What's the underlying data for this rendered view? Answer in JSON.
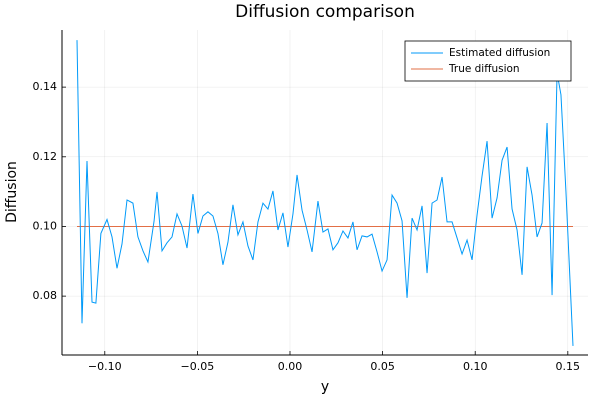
{
  "chart_data": {
    "type": "line",
    "title": "Diffusion comparison",
    "x_label": "y",
    "y_label": "Diffusion",
    "xlim": [
      -0.1231,
      0.1609
    ],
    "ylim": [
      0.0631,
      0.1564
    ],
    "xticks": [
      {
        "value": -0.1,
        "label": "−0.10"
      },
      {
        "value": -0.05,
        "label": "−0.05"
      },
      {
        "value": 0,
        "label": "0.00"
      },
      0.05,
      {
        "value": 0.1,
        "label": "0.10"
      },
      0.15
    ],
    "yticks": [
      0.08,
      {
        "value": 0.1,
        "label": "0.10"
      },
      0.12,
      0.14
    ],
    "grid": true,
    "legend": "top-right",
    "series": [
      {
        "name": "Estimated diffusion",
        "color": "#009af9",
        "x": [
          -0.115,
          -0.1123,
          -0.1096,
          -0.1069,
          -0.1048,
          -0.1021,
          -0.0988,
          -0.0961,
          -0.0934,
          -0.0907,
          -0.088,
          -0.0848,
          -0.0821,
          -0.0794,
          -0.0767,
          -0.0734,
          -0.0718,
          -0.0691,
          -0.0664,
          -0.0637,
          -0.061,
          -0.0583,
          -0.0556,
          -0.0524,
          -0.0497,
          -0.047,
          -0.0443,
          -0.0416,
          -0.0389,
          -0.0362,
          -0.0335,
          -0.0308,
          -0.0281,
          -0.0254,
          -0.0227,
          -0.02,
          -0.0173,
          -0.0146,
          -0.0119,
          -0.0092,
          -0.0065,
          -0.0038,
          -0.0011,
          0.0016,
          0.0038,
          0.0065,
          0.0092,
          0.0119,
          0.0151,
          0.0178,
          0.0205,
          0.0232,
          0.0259,
          0.0286,
          0.0313,
          0.034,
          0.0362,
          0.0389,
          0.0416,
          0.0443,
          0.047,
          0.0497,
          0.0524,
          0.0551,
          0.0578,
          0.0605,
          0.0632,
          0.0659,
          0.0686,
          0.0713,
          0.074,
          0.0767,
          0.0794,
          0.0821,
          0.0848,
          0.0875,
          0.0902,
          0.0929,
          0.0956,
          0.0983,
          0.101,
          0.1037,
          0.1064,
          0.1091,
          0.1118,
          0.1145,
          0.1172,
          0.1199,
          0.1226,
          0.1253,
          0.128,
          0.1307,
          0.1334,
          0.1361,
          0.1388,
          0.1415,
          0.1442,
          0.1463,
          0.149,
          0.1528
        ],
        "values": [
          0.1535,
          0.0722,
          0.1188,
          0.0783,
          0.078,
          0.098,
          0.102,
          0.097,
          0.088,
          0.095,
          0.1076,
          0.1067,
          0.097,
          0.093,
          0.0898,
          0.1015,
          0.1099,
          0.093,
          0.0953,
          0.097,
          0.1036,
          0.1001,
          0.0938,
          0.1093,
          0.098,
          0.103,
          0.1042,
          0.103,
          0.098,
          0.089,
          0.0955,
          0.1062,
          0.0976,
          0.1013,
          0.0944,
          0.0904,
          0.1013,
          0.1067,
          0.105,
          0.1102,
          0.099,
          0.1039,
          0.0941,
          0.1036,
          0.1148,
          0.1047,
          0.099,
          0.0927,
          0.1073,
          0.0984,
          0.0993,
          0.0933,
          0.0953,
          0.0987,
          0.0967,
          0.1013,
          0.0933,
          0.0973,
          0.097,
          0.0978,
          0.0927,
          0.0872,
          0.0904,
          0.109,
          0.1067,
          0.1016,
          0.0795,
          0.1024,
          0.099,
          0.1059,
          0.0866,
          0.1067,
          0.1076,
          0.1142,
          0.1013,
          0.1013,
          0.0967,
          0.0921,
          0.0961,
          0.0904,
          0.1033,
          0.1145,
          0.1245,
          0.1024,
          0.1082,
          0.119,
          0.1228,
          0.105,
          0.099,
          0.0861,
          0.1171,
          0.109,
          0.097,
          0.101,
          0.1297,
          0.0803,
          0.1441,
          0.1378,
          0.1099,
          0.0657
        ]
      },
      {
        "name": "True diffusion",
        "color": "#e26f46",
        "x": [
          -0.115,
          0.1528
        ],
        "values": [
          0.1,
          0.1
        ]
      }
    ]
  }
}
